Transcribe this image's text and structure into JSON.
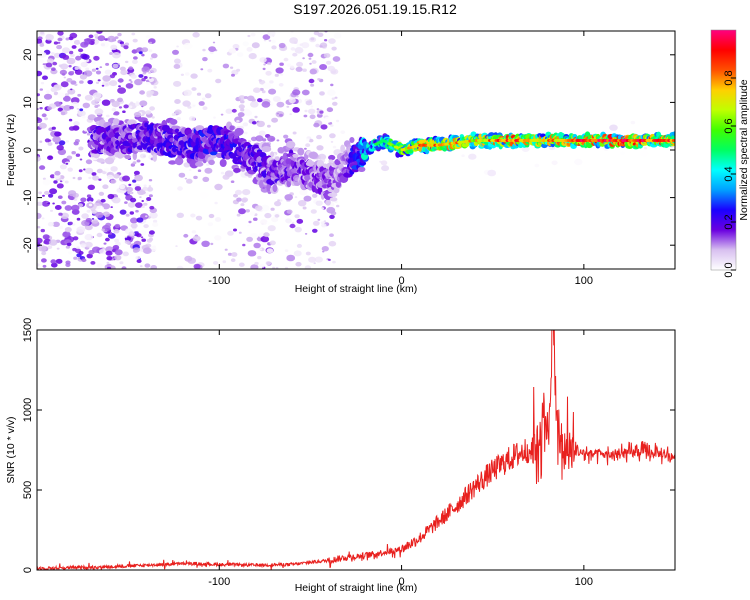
{
  "title": "S197.2026.051.19.15.R12",
  "chart_data": [
    {
      "type": "heatmap",
      "title": "S197.2026.051.19.15.R12",
      "xlabel": "Height of straight line (km)",
      "ylabel": "Frequency (Hz)",
      "xlim": [
        -200,
        150
      ],
      "ylim": [
        -25,
        25
      ],
      "xticks": [
        -100,
        0,
        100
      ],
      "yticks": [
        -20,
        -10,
        0,
        10,
        20
      ],
      "colorbar": {
        "label": "Normalized spectral amplitude",
        "range": [
          0,
          1
        ],
        "ticks": [
          "0.0",
          "0.2",
          "0.4",
          "0.6",
          "0.8"
        ],
        "colors": [
          "#ffffff",
          "#d8c0f0",
          "#6a00e0",
          "#1a00ff",
          "#00a0ff",
          "#00ffff",
          "#00ff60",
          "#40ff00",
          "#c0ff00",
          "#ffd000",
          "#ff5000",
          "#ff0000",
          "#ff0080"
        ]
      },
      "ridge": {
        "x": [
          -160,
          -140,
          -120,
          -100,
          -80,
          -70,
          -60,
          -50,
          -40,
          -35,
          -30,
          -20,
          -10,
          0,
          10,
          20,
          40,
          60,
          80,
          100,
          120,
          150
        ],
        "freq": [
          2,
          3,
          1,
          2,
          -2,
          -5,
          -3,
          -5,
          -7,
          -5,
          -3,
          0,
          2,
          0,
          1,
          1,
          2,
          2,
          2,
          2,
          2,
          2
        ],
        "amplitude": [
          0.18,
          0.2,
          0.22,
          0.25,
          0.2,
          0.18,
          0.18,
          0.15,
          0.15,
          0.12,
          0.15,
          0.4,
          0.45,
          0.6,
          0.7,
          0.75,
          0.65,
          0.8,
          0.7,
          0.8,
          0.85,
          0.75
        ]
      }
    },
    {
      "type": "line",
      "xlabel": "Height of straight line (km)",
      "ylabel": "SNR (10 * v/v)",
      "xlim": [
        -200,
        150
      ],
      "ylim": [
        0,
        1500
      ],
      "xticks": [
        -100,
        0,
        100
      ],
      "yticks": [
        0,
        500,
        1000,
        1500
      ],
      "series": [
        {
          "name": "SNR",
          "color": "#e8201e",
          "x": [
            -200,
            -180,
            -160,
            -140,
            -120,
            -100,
            -80,
            -60,
            -40,
            -30,
            -20,
            -10,
            0,
            10,
            20,
            30,
            40,
            50,
            60,
            70,
            75,
            78,
            80,
            83,
            86,
            90,
            100,
            110,
            120,
            130,
            140,
            150
          ],
          "y": [
            10,
            15,
            20,
            30,
            40,
            35,
            30,
            35,
            60,
            80,
            90,
            110,
            130,
            200,
            300,
            400,
            520,
            620,
            700,
            760,
            800,
            1000,
            750,
            1500,
            800,
            750,
            730,
            720,
            720,
            740,
            730,
            710
          ]
        }
      ]
    }
  ]
}
